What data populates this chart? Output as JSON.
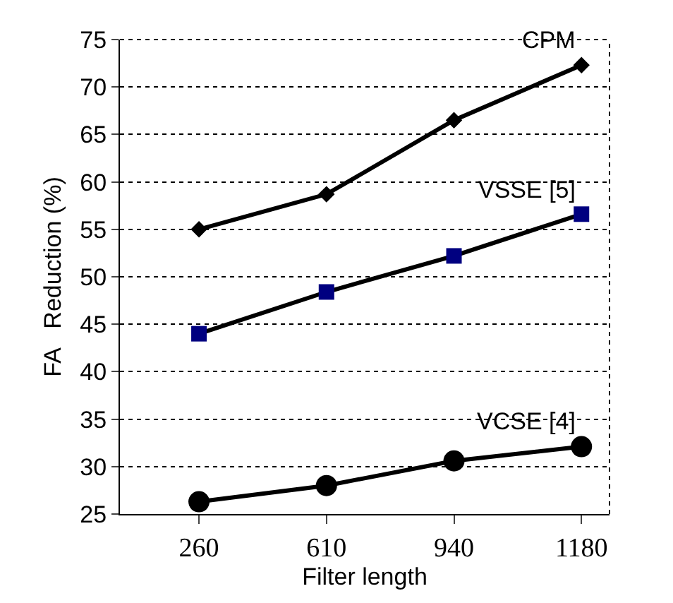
{
  "chart_data": {
    "type": "line",
    "xlabel": "Filter length",
    "ylabel": "FA   Reduction (%)",
    "categories": [
      "260",
      "610",
      "940",
      "1180"
    ],
    "series": [
      {
        "name": "CPM",
        "color": "#000000",
        "marker": "diamond",
        "values": [
          55.0,
          58.7,
          66.5,
          72.3
        ]
      },
      {
        "name": "VSSE [5]",
        "color": "#000080",
        "marker": "square",
        "values": [
          44.0,
          48.4,
          52.2,
          56.6
        ]
      },
      {
        "name": "VCSE [4]",
        "color": "#000000",
        "marker": "circle",
        "values": [
          26.3,
          28.0,
          30.6,
          32.1
        ]
      }
    ],
    "ylim": [
      25,
      75
    ],
    "yticks": [
      25,
      30,
      35,
      40,
      45,
      50,
      55,
      60,
      65,
      70,
      75
    ],
    "grid": "y",
    "legend": false,
    "line_style": "solid"
  }
}
